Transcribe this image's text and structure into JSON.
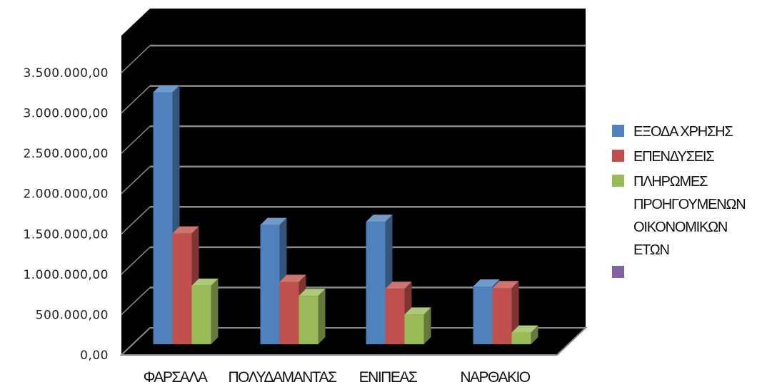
{
  "chart_data": {
    "type": "bar",
    "categories": [
      "ΦΑΡΣΑΛΑ",
      "ΠΟΛΥΔΑΜΑΝΤΑΣ",
      "ΕΝΙΠΕΑΣ",
      "ΝΑΡΘΑΚΙΟ"
    ],
    "y_tick_labels": [
      "0,00",
      "500.000,00",
      "1.000.000,00",
      "1.500.000,00",
      "2.000.000,00",
      "2.500.000,00",
      "3.000.000,00",
      "3.500.000,00"
    ],
    "ylim": [
      0,
      3500000
    ],
    "grid": true,
    "plot_background": "#000000",
    "legend_position": "right",
    "series": [
      {
        "name": "ΕΞΟΔΑ ΧΡΗΣΗΣ",
        "color": "#4f81bd",
        "values": [
          3230000,
          1530000,
          1570000,
          740000
        ]
      },
      {
        "name": "ΕΠΕΝΔΥΣΕΙΣ",
        "color": "#c0504d",
        "values": [
          1420000,
          800000,
          710000,
          720000
        ]
      },
      {
        "name": "ΠΛΗΡΩΜΕΣ ΠΡΟΗΓΟΥΜΕΝΩΝ ΟΙΚΟΝΟΜΙΚΩΝ ΕΤΩΝ",
        "color": "#9bbb59",
        "values": [
          750000,
          620000,
          380000,
          150000
        ]
      },
      {
        "name": "",
        "color": "#8064a2",
        "values": [
          0,
          0,
          0,
          0
        ]
      }
    ],
    "legend_lines": [
      [
        "ΕΞΟΔΑ ΧΡΗΣΗΣ"
      ],
      [
        "ΕΠΕΝΔΥΣΕΙΣ"
      ],
      [
        "ΠΛΗΡΩΜΕΣ",
        "ΠΡΟΗΓΟΥΜΕΝΩΝ",
        "ΟΙΚΟΝΟΜΙΚΩΝ",
        "ΕΤΩΝ"
      ],
      [
        ""
      ]
    ]
  }
}
